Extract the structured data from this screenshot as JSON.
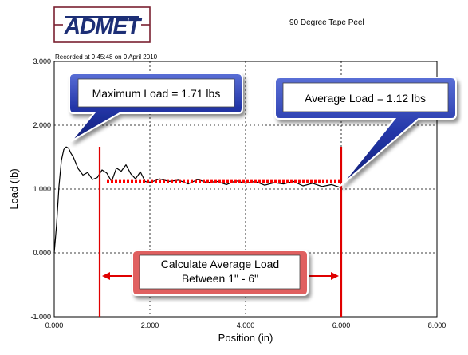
{
  "logo": {
    "text": "ADMET"
  },
  "chart_data": {
    "type": "line",
    "title": "90 Degree Tape Peel",
    "subtitle": "Recorded at 9:45:48 on 9 April 2010",
    "xlabel": "Position (in)",
    "ylabel": "Load (lb)",
    "xlim": [
      0,
      8
    ],
    "ylim": [
      -1,
      3
    ],
    "x_ticks": [
      0,
      2,
      4,
      6,
      8
    ],
    "x_tick_labels": [
      "0.000",
      "2.000",
      "4.000",
      "6.000",
      "8.000"
    ],
    "y_ticks": [
      -1,
      0,
      1,
      2,
      3
    ],
    "y_tick_labels": [
      "-1.000",
      "0.000",
      "1.000",
      "2.000",
      "3.000"
    ],
    "grid": true,
    "series": [
      {
        "color": "#000000",
        "x": [
          0.0,
          0.05,
          0.1,
          0.15,
          0.2,
          0.25,
          0.3,
          0.35,
          0.4,
          0.5,
          0.6,
          0.7,
          0.8,
          0.9,
          1.0,
          1.1,
          1.2,
          1.3,
          1.4,
          1.5,
          1.6,
          1.7,
          1.8,
          1.9,
          2.0,
          2.2,
          2.4,
          2.6,
          2.8,
          3.0,
          3.2,
          3.4,
          3.6,
          3.8,
          4.0,
          4.2,
          4.4,
          4.6,
          4.8,
          5.0,
          5.2,
          5.4,
          5.6,
          5.8,
          6.0
        ],
        "y": [
          0.0,
          0.45,
          1.05,
          1.45,
          1.62,
          1.66,
          1.64,
          1.56,
          1.5,
          1.32,
          1.22,
          1.26,
          1.15,
          1.18,
          1.3,
          1.25,
          1.12,
          1.33,
          1.28,
          1.38,
          1.24,
          1.16,
          1.27,
          1.12,
          1.1,
          1.16,
          1.12,
          1.14,
          1.08,
          1.15,
          1.1,
          1.12,
          1.07,
          1.13,
          1.09,
          1.12,
          1.06,
          1.1,
          1.08,
          1.12,
          1.05,
          1.09,
          1.04,
          1.07,
          1.02
        ]
      },
      {
        "color": "#ff0000",
        "style": "dotted",
        "x": [
          1.1,
          6.0
        ],
        "y": [
          1.12,
          1.12
        ]
      }
    ],
    "markers": [
      {
        "x": 0.95,
        "color": "#e00000"
      },
      {
        "x": 6.0,
        "color": "#e00000"
      }
    ],
    "annotations": [
      {
        "text": "Maximum Load = 1.71 lbs",
        "target_x": 0.3,
        "target_y": 1.71
      },
      {
        "text": "Average Load = 1.12 lbs",
        "target_x": 6.0,
        "target_y": 1.12
      },
      {
        "text": "Calculate Average Load\nBetween 1\" - 6\""
      }
    ]
  }
}
